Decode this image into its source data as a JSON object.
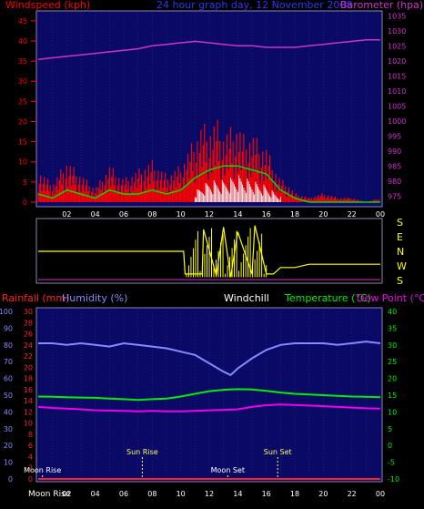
{
  "chart_data": [
    {
      "type": "bar+line",
      "title": "24 hour graph day, 12 November 2008",
      "left_label": "Windspeed (kph)",
      "right_label": "Barometer (hpa)",
      "left_ticks": [
        0,
        5,
        10,
        15,
        20,
        25,
        30,
        35,
        40,
        45
      ],
      "right_ticks": [
        975,
        980,
        985,
        990,
        995,
        1000,
        1005,
        1010,
        1015,
        1020,
        1025,
        1030,
        1035
      ],
      "x_ticks": [
        "02",
        "04",
        "06",
        "08",
        "10",
        "12",
        "14",
        "16",
        "18",
        "20",
        "22",
        "00"
      ],
      "ylim_left": [
        0,
        47
      ],
      "ylim_right": [
        973,
        1036
      ],
      "x_range_hours": [
        0,
        24
      ],
      "colors": {
        "gust": "#ff0000",
        "wind_avg": "#00dd00",
        "wind_speed_band": "#ffffff",
        "barometer": "#cc33cc",
        "plot_bg": "#0a0a66",
        "left_axis": "#ff0000",
        "right_axis": "#cc33cc",
        "title": "#3333ff"
      },
      "series": [
        {
          "key": "barometer",
          "x": [
            0,
            1,
            2,
            3,
            4,
            5,
            6,
            7,
            8,
            9,
            10,
            11,
            12,
            13,
            14,
            15,
            16,
            17,
            18,
            19,
            20,
            21,
            22,
            23,
            24
          ],
          "values": [
            1020.5,
            1021,
            1021.5,
            1022,
            1022.5,
            1023,
            1023.5,
            1024,
            1025,
            1025.5,
            1026,
            1026.5,
            1026,
            1025.5,
            1025,
            1025,
            1024.5,
            1024.5,
            1024.5,
            1025,
            1025.5,
            1026,
            1026.5,
            1027,
            1027
          ]
        },
        {
          "key": "gust",
          "x": [
            0,
            1,
            2,
            3,
            4,
            5,
            6,
            7,
            8,
            9,
            10,
            11,
            11.5,
            12,
            12.5,
            13,
            13.5,
            14,
            14.5,
            15,
            15.5,
            16,
            16.5,
            17,
            17.5,
            18,
            19,
            20,
            21,
            22,
            23,
            24
          ],
          "values": [
            7,
            4,
            9,
            6,
            3,
            8,
            5,
            7,
            9,
            6,
            8,
            14,
            17,
            16,
            18,
            15,
            16,
            17,
            14,
            15,
            13,
            12,
            8,
            5,
            4,
            2,
            1,
            2,
            1,
            1,
            0,
            1
          ]
        },
        {
          "key": "wind_avg",
          "x": [
            0,
            1,
            2,
            3,
            4,
            5,
            6,
            7,
            8,
            9,
            10,
            11,
            12,
            13,
            14,
            15,
            16,
            17,
            18,
            19,
            20,
            21,
            22,
            23,
            24
          ],
          "values": [
            2,
            1,
            3,
            2,
            1,
            3,
            2,
            2,
            3,
            2,
            3,
            6,
            8,
            9,
            9,
            8,
            7,
            3,
            1,
            0,
            0,
            0,
            0,
            0,
            0
          ]
        },
        {
          "key": "wind_speed_band",
          "x": [
            11,
            12,
            13,
            14,
            15,
            16,
            17
          ],
          "values": [
            2,
            4,
            4,
            5,
            4,
            3,
            1
          ]
        }
      ]
    },
    {
      "type": "line",
      "title": "",
      "right_label_letters": [
        "S",
        "E",
        "N",
        "W",
        "S"
      ],
      "x_range_hours": [
        0,
        24
      ],
      "colors": {
        "direction": "#ffff00",
        "plot_bg": "#000000",
        "right_axis": "#ffff00"
      },
      "series": [
        {
          "key": "direction",
          "x": [
            0,
            10.2,
            10.3,
            11.5,
            11.6,
            12.5,
            13,
            13.5,
            14,
            15,
            15.2,
            16,
            16.5,
            17,
            18,
            19,
            20,
            21,
            22,
            23,
            24
          ],
          "values": [
            180,
            180,
            40,
            40,
            315,
            30,
            330,
            20,
            300,
            40,
            340,
            40,
            40,
            80,
            80,
            100,
            100,
            100,
            100,
            100,
            100
          ]
        },
        {
          "key": "baseline",
          "x": [
            0,
            24
          ],
          "values": [
            5,
            5
          ]
        }
      ]
    },
    {
      "type": "line",
      "title": "",
      "headers": [
        "Rainfall (mm)",
        "Humidity (%)",
        "Windchill",
        "Temperature (°C)",
        "Dew Point (°C)"
      ],
      "left_ticks_rain": [
        0,
        2,
        4,
        6,
        8,
        10,
        12,
        14,
        16,
        18,
        20,
        22,
        24,
        26,
        28,
        30
      ],
      "left_ticks_humidity": [
        0,
        10,
        20,
        30,
        40,
        50,
        60,
        70,
        80,
        90,
        100
      ],
      "right_ticks_temp": [
        -10,
        -5,
        0,
        5,
        10,
        15,
        20,
        25,
        30,
        35,
        40
      ],
      "x_ticks": [
        "02",
        "04",
        "06",
        "08",
        "10",
        "12",
        "14",
        "16",
        "18",
        "20",
        "22",
        "00"
      ],
      "ylim_temp": [
        -10,
        40
      ],
      "x_range_hours": [
        0,
        24
      ],
      "annotations": [
        {
          "label": "Moon Rise",
          "hour": 0.3
        },
        {
          "label": "Sun Rise",
          "hour": 7.3
        },
        {
          "label": "Moon Set",
          "hour": 13.3
        },
        {
          "label": "Sun Set",
          "hour": 16.8
        }
      ],
      "bottom_label": "Moon Rise",
      "colors": {
        "humidity": "#8888ff",
        "temperature": "#00ee00",
        "dewpoint": "#ee00ee",
        "windchill": "#ffffff",
        "rainfall": "#ff2222",
        "plot_bg": "#0a0a66"
      },
      "series": [
        {
          "key": "humidity",
          "values_unit": "%",
          "x": [
            0,
            1,
            2,
            3,
            4,
            5,
            6,
            7,
            8,
            9,
            10,
            11,
            12,
            13,
            13.5,
            14,
            15,
            16,
            17,
            18,
            19,
            20,
            21,
            22,
            23,
            24
          ],
          "values": [
            81,
            81,
            80,
            81,
            80,
            79,
            81,
            80,
            79,
            78,
            76,
            74,
            69,
            64,
            62,
            66,
            72,
            77,
            80,
            81,
            81,
            81,
            80,
            81,
            82,
            81
          ]
        },
        {
          "key": "temperature",
          "values_unit": "°C",
          "x": [
            0,
            1,
            2,
            3,
            4,
            5,
            6,
            7,
            8,
            9,
            10,
            11,
            12,
            13,
            14,
            15,
            16,
            17,
            18,
            19,
            20,
            21,
            22,
            23,
            24
          ],
          "values": [
            14.6,
            14.5,
            14.4,
            14.3,
            14.2,
            14,
            13.8,
            13.6,
            13.8,
            14.0,
            14.6,
            15.4,
            16.2,
            16.6,
            16.8,
            16.7,
            16.3,
            15.8,
            15.4,
            15.2,
            15.0,
            14.8,
            14.6,
            14.5,
            14.4
          ]
        },
        {
          "key": "dewpoint",
          "values_unit": "°C",
          "x": [
            0,
            1,
            2,
            3,
            4,
            5,
            6,
            7,
            8,
            9,
            10,
            11,
            12,
            13,
            14,
            15,
            16,
            17,
            18,
            19,
            20,
            21,
            22,
            23,
            24
          ],
          "values": [
            11.5,
            11.2,
            11.0,
            10.8,
            10.5,
            10.4,
            10.3,
            10.2,
            10.3,
            10.2,
            10.2,
            10.3,
            10.5,
            10.6,
            10.8,
            11.5,
            12.0,
            12.2,
            12.1,
            11.9,
            11.7,
            11.5,
            11.3,
            11.1,
            11.0
          ]
        },
        {
          "key": "rainfall",
          "values_unit": "mm",
          "x": [
            0,
            24
          ],
          "values": [
            0,
            0
          ]
        }
      ]
    }
  ]
}
